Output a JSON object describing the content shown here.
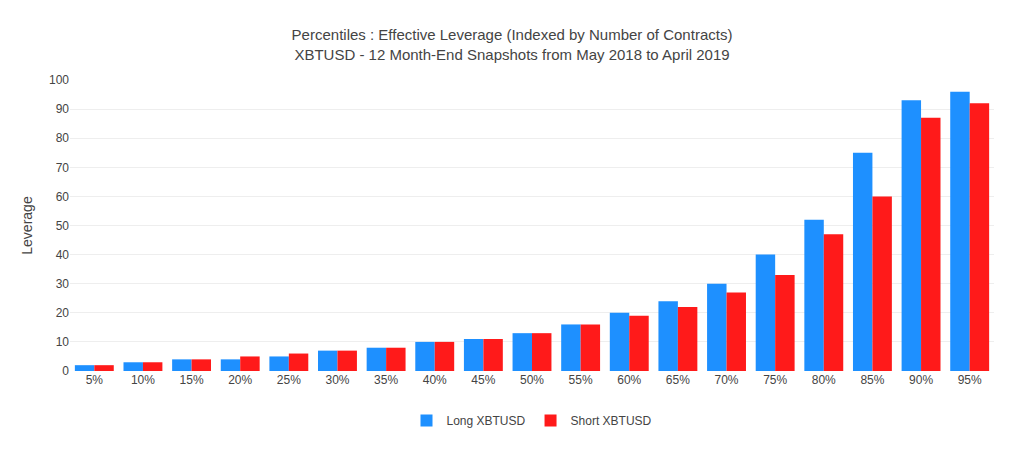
{
  "chart_data": {
    "type": "bar",
    "title": "Percentiles : Effective Leverage (Indexed by Number of Contracts)",
    "subtitle": "XBTUSD - 12 Month-End Snapshots from May 2018 to April 2019",
    "ylabel": "Leverage",
    "categories": [
      "5%",
      "10%",
      "15%",
      "20%",
      "25%",
      "30%",
      "35%",
      "40%",
      "45%",
      "50%",
      "55%",
      "60%",
      "65%",
      "70%",
      "75%",
      "80%",
      "85%",
      "90%",
      "95%"
    ],
    "series": [
      {
        "name": "Long XBTUSD",
        "color": "#1e90ff",
        "values": [
          2,
          3,
          4,
          4,
          5,
          7,
          8,
          10,
          11,
          13,
          16,
          20,
          24,
          30,
          40,
          52,
          75,
          93,
          96
        ]
      },
      {
        "name": "Short XBTUSD",
        "color": "#ff1a1a",
        "values": [
          2,
          3,
          4,
          5,
          6,
          7,
          8,
          10,
          11,
          13,
          16,
          19,
          22,
          27,
          33,
          47,
          60,
          87,
          92
        ]
      }
    ],
    "ylim": [
      0,
      100
    ],
    "yticks": [
      0,
      10,
      20,
      30,
      40,
      50,
      60,
      70,
      80,
      90,
      100
    ],
    "grid": true,
    "legend": "bottom"
  }
}
